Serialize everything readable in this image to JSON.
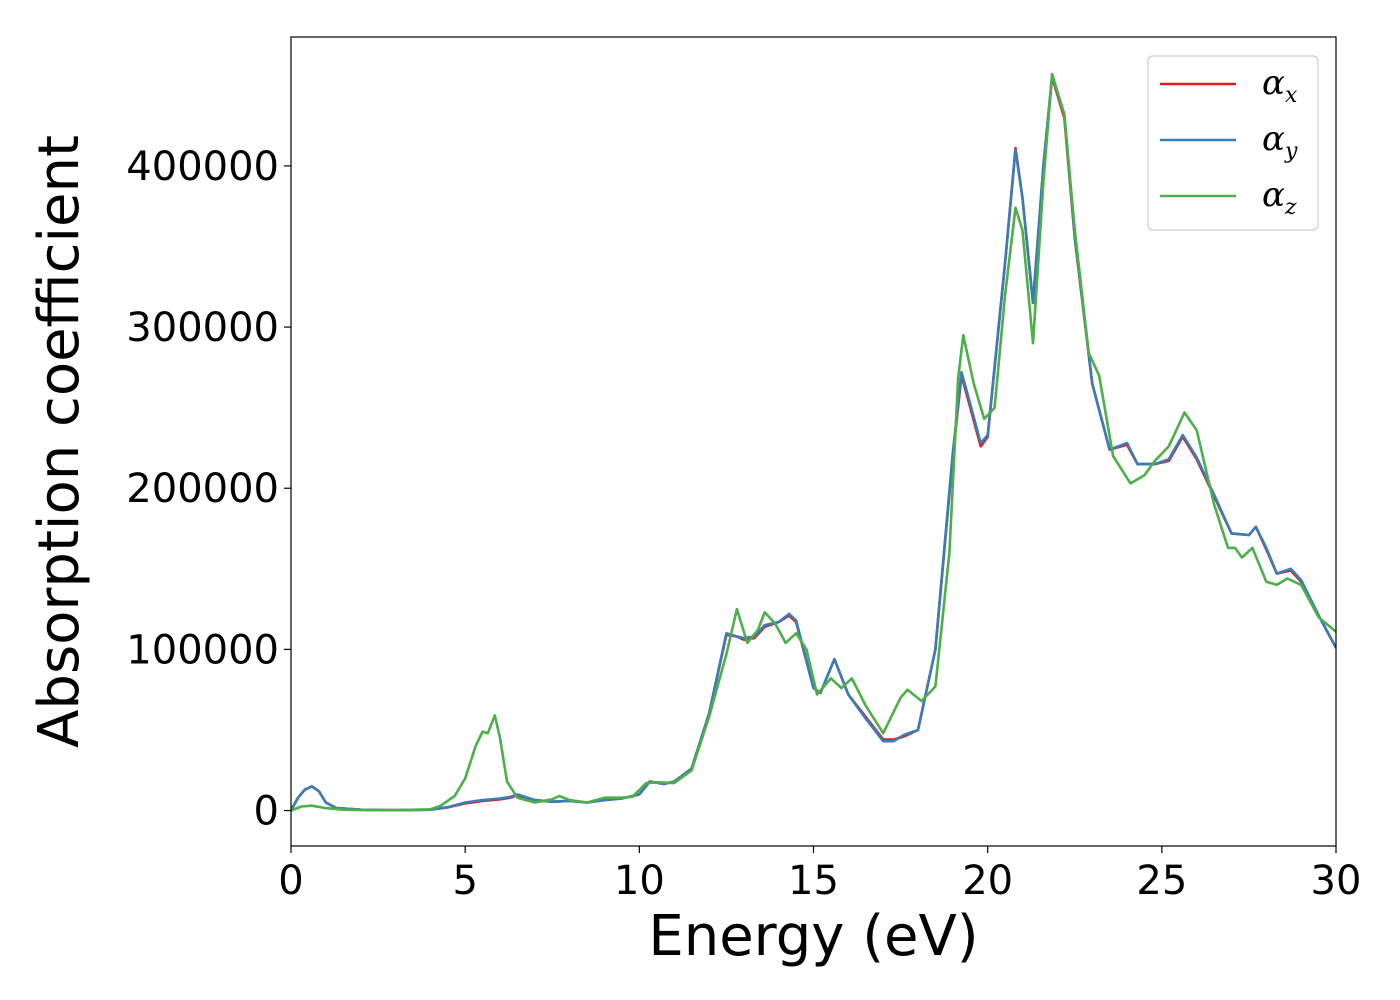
{
  "chart_data": {
    "type": "line",
    "title": "",
    "xlabel": "Energy (eV)",
    "ylabel": "Absorption coefficient",
    "xlim": [
      0,
      30
    ],
    "ylim": [
      -22000,
      480000
    ],
    "xticks": [
      0,
      5,
      10,
      15,
      20,
      25,
      30
    ],
    "xtick_labels": [
      "0",
      "5",
      "10",
      "15",
      "20",
      "25",
      "30"
    ],
    "yticks": [
      0,
      100000,
      200000,
      300000,
      400000
    ],
    "ytick_labels": [
      "0",
      "100000",
      "200000",
      "300000",
      "400000"
    ],
    "grid": false,
    "legend": {
      "placement": "top-right"
    },
    "series": [
      {
        "name": "α",
        "subscript": "x",
        "color": "#e41a1c",
        "points": [
          [
            0,
            0
          ],
          [
            0.2,
            8000
          ],
          [
            0.4,
            13000
          ],
          [
            0.6,
            15000
          ],
          [
            0.8,
            12000
          ],
          [
            1.0,
            5000
          ],
          [
            1.3,
            1500
          ],
          [
            2,
            500
          ],
          [
            3,
            200
          ],
          [
            4,
            500
          ],
          [
            4.5,
            2000
          ],
          [
            5,
            4500
          ],
          [
            5.5,
            6000
          ],
          [
            6,
            7000
          ],
          [
            6.3,
            8000
          ],
          [
            6.5,
            9500
          ],
          [
            7,
            6500
          ],
          [
            7.5,
            5500
          ],
          [
            8,
            6000
          ],
          [
            8.5,
            5000
          ],
          [
            9,
            6500
          ],
          [
            9.5,
            7500
          ],
          [
            10,
            10000
          ],
          [
            10.3,
            18000
          ],
          [
            10.7,
            16500
          ],
          [
            11,
            18000
          ],
          [
            11.5,
            26000
          ],
          [
            12,
            60000
          ],
          [
            12.5,
            109000
          ],
          [
            12.8,
            108000
          ],
          [
            13,
            106000
          ],
          [
            13.3,
            107000
          ],
          [
            13.6,
            114000
          ],
          [
            14,
            117000
          ],
          [
            14.3,
            121000
          ],
          [
            14.5,
            117000
          ],
          [
            15,
            76000
          ],
          [
            15.2,
            73000
          ],
          [
            15.6,
            94000
          ],
          [
            16,
            72000
          ],
          [
            16.5,
            58000
          ],
          [
            17,
            44000
          ],
          [
            17.3,
            44000
          ],
          [
            17.6,
            46000
          ],
          [
            18,
            50000
          ],
          [
            18.5,
            100000
          ],
          [
            19,
            220000
          ],
          [
            19.25,
            270000
          ],
          [
            19.5,
            250000
          ],
          [
            19.8,
            226000
          ],
          [
            20,
            232000
          ],
          [
            20.5,
            340000
          ],
          [
            20.8,
            411000
          ],
          [
            21,
            380000
          ],
          [
            21.3,
            315000
          ],
          [
            21.6,
            400000
          ],
          [
            21.85,
            455000
          ],
          [
            22.2,
            430000
          ],
          [
            22.5,
            355000
          ],
          [
            23,
            265000
          ],
          [
            23.5,
            224000
          ],
          [
            24,
            227000
          ],
          [
            24.3,
            215000
          ],
          [
            24.8,
            215000
          ],
          [
            25.2,
            217000
          ],
          [
            25.6,
            232000
          ],
          [
            26,
            218000
          ],
          [
            26.5,
            195000
          ],
          [
            27,
            172000
          ],
          [
            27.5,
            171000
          ],
          [
            27.7,
            176000
          ],
          [
            28,
            162000
          ],
          [
            28.3,
            147000
          ],
          [
            28.7,
            149000
          ],
          [
            29,
            142000
          ],
          [
            29.5,
            121000
          ],
          [
            30,
            101000
          ]
        ]
      },
      {
        "name": "α",
        "subscript": "y",
        "color": "#377eb8",
        "points": [
          [
            0,
            0
          ],
          [
            0.2,
            8000
          ],
          [
            0.4,
            13000
          ],
          [
            0.6,
            15000
          ],
          [
            0.8,
            12000
          ],
          [
            1.0,
            5000
          ],
          [
            1.3,
            1500
          ],
          [
            2,
            500
          ],
          [
            3,
            200
          ],
          [
            4,
            500
          ],
          [
            4.5,
            2000
          ],
          [
            5,
            5000
          ],
          [
            5.5,
            6500
          ],
          [
            6,
            7500
          ],
          [
            6.3,
            8500
          ],
          [
            6.5,
            10000
          ],
          [
            7,
            6500
          ],
          [
            7.5,
            5500
          ],
          [
            8,
            6000
          ],
          [
            8.5,
            5000
          ],
          [
            9,
            6500
          ],
          [
            9.5,
            7500
          ],
          [
            10,
            10000
          ],
          [
            10.3,
            18000
          ],
          [
            10.7,
            16500
          ],
          [
            11,
            18000
          ],
          [
            11.5,
            26000
          ],
          [
            12,
            60000
          ],
          [
            12.5,
            110000
          ],
          [
            12.8,
            108000
          ],
          [
            13,
            107000
          ],
          [
            13.3,
            108000
          ],
          [
            13.6,
            115000
          ],
          [
            14,
            117000
          ],
          [
            14.3,
            122000
          ],
          [
            14.5,
            118000
          ],
          [
            15,
            76000
          ],
          [
            15.2,
            73000
          ],
          [
            15.6,
            94000
          ],
          [
            16,
            72000
          ],
          [
            16.5,
            57000
          ],
          [
            17,
            43000
          ],
          [
            17.3,
            43000
          ],
          [
            17.6,
            47000
          ],
          [
            18,
            50000
          ],
          [
            18.5,
            100000
          ],
          [
            19,
            222000
          ],
          [
            19.25,
            272000
          ],
          [
            19.5,
            252000
          ],
          [
            19.8,
            228000
          ],
          [
            20,
            233000
          ],
          [
            20.5,
            340000
          ],
          [
            20.8,
            410000
          ],
          [
            21,
            380000
          ],
          [
            21.3,
            315000
          ],
          [
            21.6,
            400000
          ],
          [
            21.85,
            456000
          ],
          [
            22.2,
            432000
          ],
          [
            22.5,
            356000
          ],
          [
            23,
            265000
          ],
          [
            23.5,
            224000
          ],
          [
            24,
            228000
          ],
          [
            24.3,
            215000
          ],
          [
            24.8,
            215000
          ],
          [
            25.2,
            218000
          ],
          [
            25.6,
            233000
          ],
          [
            26,
            219000
          ],
          [
            26.5,
            196000
          ],
          [
            27,
            172000
          ],
          [
            27.5,
            171000
          ],
          [
            27.7,
            176000
          ],
          [
            28,
            163000
          ],
          [
            28.3,
            147000
          ],
          [
            28.7,
            150000
          ],
          [
            29,
            143000
          ],
          [
            29.5,
            121000
          ],
          [
            30,
            101000
          ]
        ]
      },
      {
        "name": "α",
        "subscript": "z",
        "color": "#4daf4a",
        "points": [
          [
            0,
            0
          ],
          [
            0.3,
            2500
          ],
          [
            0.6,
            3000
          ],
          [
            1.0,
            1500
          ],
          [
            1.5,
            500
          ],
          [
            2,
            300
          ],
          [
            3,
            200
          ],
          [
            4,
            800
          ],
          [
            4.3,
            3000
          ],
          [
            4.7,
            9000
          ],
          [
            5,
            20000
          ],
          [
            5.3,
            40000
          ],
          [
            5.5,
            49000
          ],
          [
            5.65,
            48000
          ],
          [
            5.85,
            59000
          ],
          [
            6.0,
            45000
          ],
          [
            6.2,
            18000
          ],
          [
            6.5,
            8000
          ],
          [
            7,
            5000
          ],
          [
            7.5,
            7000
          ],
          [
            7.7,
            9000
          ],
          [
            8,
            6500
          ],
          [
            8.5,
            5000
          ],
          [
            9,
            8000
          ],
          [
            9.5,
            8000
          ],
          [
            9.8,
            8500
          ],
          [
            10.2,
            17000
          ],
          [
            10.5,
            17500
          ],
          [
            11,
            17000
          ],
          [
            11.5,
            25000
          ],
          [
            12,
            58000
          ],
          [
            12.5,
            97000
          ],
          [
            12.8,
            125000
          ],
          [
            13.1,
            104000
          ],
          [
            13.4,
            112000
          ],
          [
            13.6,
            123000
          ],
          [
            13.9,
            116000
          ],
          [
            14.2,
            104000
          ],
          [
            14.5,
            110000
          ],
          [
            14.8,
            100000
          ],
          [
            15.1,
            72000
          ],
          [
            15.5,
            82000
          ],
          [
            15.8,
            76000
          ],
          [
            16.1,
            82000
          ],
          [
            16.5,
            65000
          ],
          [
            17,
            48000
          ],
          [
            17.5,
            70000
          ],
          [
            17.7,
            75000
          ],
          [
            18.1,
            68000
          ],
          [
            18.5,
            77000
          ],
          [
            18.9,
            160000
          ],
          [
            19.15,
            268000
          ],
          [
            19.3,
            295000
          ],
          [
            19.6,
            265000
          ],
          [
            19.9,
            243000
          ],
          [
            20.2,
            250000
          ],
          [
            20.5,
            320000
          ],
          [
            20.8,
            374000
          ],
          [
            21.0,
            360000
          ],
          [
            21.3,
            290000
          ],
          [
            21.6,
            390000
          ],
          [
            21.85,
            457000
          ],
          [
            22.2,
            432000
          ],
          [
            22.5,
            360000
          ],
          [
            22.9,
            284000
          ],
          [
            23.2,
            270000
          ],
          [
            23.6,
            220000
          ],
          [
            24.1,
            203000
          ],
          [
            24.5,
            208000
          ],
          [
            24.8,
            217000
          ],
          [
            25.2,
            226000
          ],
          [
            25.65,
            247000
          ],
          [
            26.0,
            236000
          ],
          [
            26.5,
            190000
          ],
          [
            26.9,
            163000
          ],
          [
            27.1,
            163000
          ],
          [
            27.3,
            157000
          ],
          [
            27.6,
            163000
          ],
          [
            28,
            142000
          ],
          [
            28.3,
            140000
          ],
          [
            28.6,
            144000
          ],
          [
            29,
            140000
          ],
          [
            29.5,
            120000
          ],
          [
            30,
            111000
          ]
        ]
      }
    ]
  }
}
